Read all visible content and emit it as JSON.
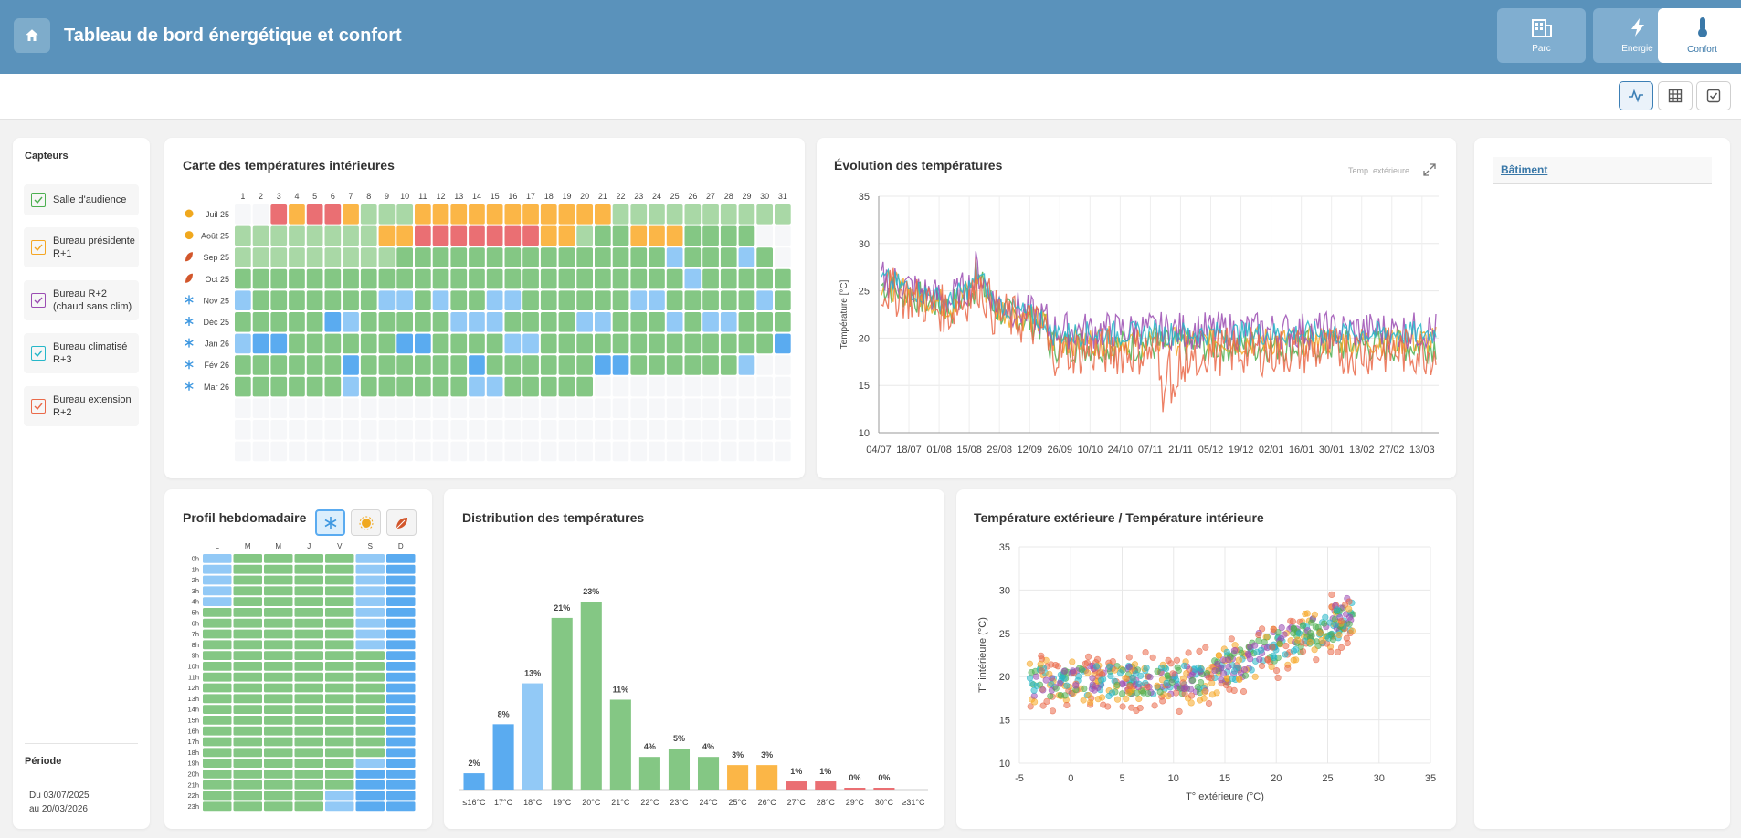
{
  "header": {
    "title": "Tableau de bord énergétique et confort",
    "nav": [
      {
        "label": "Parc"
      },
      {
        "label": "Energie"
      },
      {
        "label": "Confort"
      }
    ]
  },
  "colors": {
    "very_cold": "#5aabf0",
    "cold": "#92c9f6",
    "comfort": "#84c784",
    "comfort_light": "#a9d8a6",
    "warm": "#fbb647",
    "hot": "#ea6f73",
    "empty": "#f6f7f9",
    "header": "#5a92bb"
  },
  "sidebar": {
    "title": "Capteurs",
    "sensors": [
      {
        "label": "Salle d'audience",
        "color": "#4caf50"
      },
      {
        "label": "Bureau présidente R+1",
        "color": "#f5a623"
      },
      {
        "label": "Bureau R+2 (chaud sans clim)",
        "color": "#9b4db3"
      },
      {
        "label": "Bureau climatisé R+3",
        "color": "#26b7c9"
      },
      {
        "label": "Bureau extension R+2",
        "color": "#ea6a4a"
      }
    ],
    "period_title": "Période",
    "period_from": "Du 03/07/2025",
    "period_to": "au 20/03/2026"
  },
  "heatmap": {
    "title": "Carte des températures intérieures",
    "days": [
      "1",
      "2",
      "3",
      "4",
      "5",
      "6",
      "7",
      "8",
      "9",
      "10",
      "11",
      "12",
      "13",
      "14",
      "15",
      "16",
      "17",
      "18",
      "19",
      "20",
      "21",
      "22",
      "23",
      "24",
      "25",
      "26",
      "27",
      "28",
      "29",
      "30",
      "31"
    ],
    "months": [
      {
        "label": "Juil 25",
        "icon": "sun-icon",
        "codes": "xxRORROLLLOOOOOOOOOOOLLLLLLLLLL"
      },
      {
        "label": "Août 25",
        "icon": "sun-icon",
        "codes": "LLLLLLLLOORRRRRRROOLGGOOOGGGG"
      },
      {
        "label": "Sep 25",
        "icon": "leaf-icon",
        "codes": "LLLLLLLLLGGGGGGGGGGGGGGGBGGGBG"
      },
      {
        "label": "Oct 25",
        "icon": "leaf-icon",
        "codes": "GGGGGGGGGGGGGGGGGGGGGGGGGBGGGGG"
      },
      {
        "label": "Nov 25",
        "icon": "snowflake-icon",
        "codes": "BGGGGGGGBBGBGGBBGGGGGGBBGGGGGBG"
      },
      {
        "label": "Déc 25",
        "icon": "snowflake-icon",
        "codes": "GGGGGDBGGGGGBBBGGGGBBGGGBGBBGGG"
      },
      {
        "label": "Jan 26",
        "icon": "snowflake-icon",
        "codes": "BDDGGGGGGDDGGGGBBGGGGGGGGGGGGGD"
      },
      {
        "label": "Fév 26",
        "icon": "snowflake-icon",
        "codes": "GGGGGGDGGGGGGDGGGGGGDDGGGGGGB"
      },
      {
        "label": "Mar 26",
        "icon": "snowflake-icon",
        "codes": "GGGGGGBGGGGGGBBGGGGG"
      }
    ]
  },
  "timeseries": {
    "title": "Évolution des températures",
    "legend_toggle": "Temp. extérieure",
    "ylabel": "Température [°C]",
    "yticks": [
      "35",
      "30",
      "25",
      "20",
      "15",
      "10"
    ],
    "xticks": [
      "04/07",
      "18/07",
      "01/08",
      "15/08",
      "29/08",
      "12/09",
      "26/09",
      "10/10",
      "24/10",
      "07/11",
      "21/11",
      "05/12",
      "19/12",
      "02/01",
      "16/01",
      "30/01",
      "13/02",
      "27/02",
      "13/03"
    ]
  },
  "weekly": {
    "title": "Profil hebdomadaire",
    "days": [
      "L",
      "M",
      "M",
      "J",
      "V",
      "S",
      "D"
    ],
    "hours": [
      "0h",
      "1h",
      "2h",
      "3h",
      "4h",
      "5h",
      "6h",
      "7h",
      "8h",
      "9h",
      "10h",
      "11h",
      "12h",
      "13h",
      "14h",
      "15h",
      "16h",
      "17h",
      "18h",
      "19h",
      "20h",
      "21h",
      "22h",
      "23h"
    ],
    "rows": [
      "BGGGGBD",
      "BGGGGBD",
      "BGGGGBD",
      "BGGGGBD",
      "BGGGGBD",
      "GGGGGBD",
      "GGGGGBD",
      "GGGGGBD",
      "GGGGGBD",
      "GGGGGGD",
      "GGGGGGD",
      "GGGGGGD",
      "GGGGGGD",
      "GGGGGGD",
      "GGGGGGD",
      "GGGGGGD",
      "GGGGGGD",
      "GGGGGGD",
      "GGGGGGD",
      "GGGGGBD",
      "GGGGGDD",
      "GGGGGDD",
      "GGGGBDD",
      "GGGGBDD"
    ]
  },
  "chart_data": [
    {
      "type": "bar",
      "title": "Distribution des températures",
      "categories": [
        "≤16°C",
        "17°C",
        "18°C",
        "19°C",
        "20°C",
        "21°C",
        "22°C",
        "23°C",
        "24°C",
        "25°C",
        "26°C",
        "27°C",
        "28°C",
        "29°C",
        "30°C",
        "≥31°C"
      ],
      "values": [
        2,
        8,
        13,
        21,
        23,
        11,
        4,
        5,
        4,
        3,
        3,
        1,
        1,
        0,
        0,
        0
      ],
      "labels": [
        "2%",
        "8%",
        "13%",
        "21%",
        "23%",
        "11%",
        "4%",
        "5%",
        "4%",
        "3%",
        "3%",
        "1%",
        "1%",
        "0%",
        "0%",
        ""
      ],
      "colors": [
        "#5aabf0",
        "#5aabf0",
        "#92c9f6",
        "#84c784",
        "#84c784",
        "#84c784",
        "#84c784",
        "#84c784",
        "#84c784",
        "#fbb647",
        "#fbb647",
        "#ea6f73",
        "#ea6f73",
        "#ea6f73",
        "#ea6f73",
        "#ea6f73"
      ]
    },
    {
      "type": "scatter",
      "title": "Température extérieure / Température intérieure",
      "xlabel": "T° extérieure (°C)",
      "ylabel": "T° intérieure (°C)",
      "xticks": [
        "-5",
        "0",
        "5",
        "10",
        "15",
        "20",
        "25",
        "30",
        "35"
      ],
      "yticks": [
        "35",
        "30",
        "25",
        "20",
        "15",
        "10"
      ],
      "xlim": [
        -5,
        35
      ],
      "ylim": [
        10,
        35
      ]
    }
  ],
  "right_panel": {
    "tab": "Bâtiment"
  }
}
